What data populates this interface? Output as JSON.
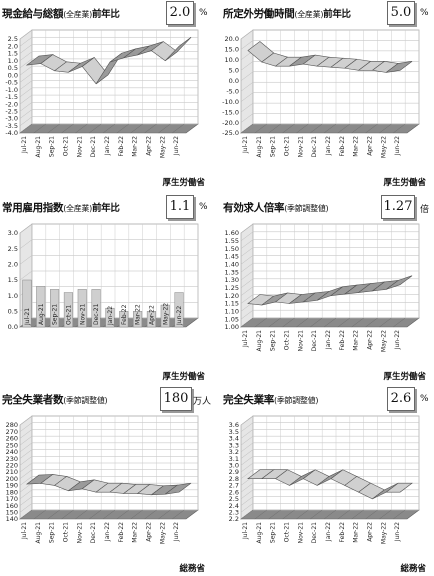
{
  "panels": [
    {
      "title": "現金給与総額",
      "sub": "(全産業)",
      "tail": "前年比",
      "value": "2.0",
      "unit": "%",
      "source": "厚生労働省"
    },
    {
      "title": "所定外労働時間",
      "sub": "(全産業)",
      "tail": "前年比",
      "value": "5.0",
      "unit": "%",
      "source": "厚生労働省"
    },
    {
      "title": "常用雇用指数",
      "sub": "(全産業)",
      "tail": "前年比",
      "value": "1.1",
      "unit": "%",
      "source": "厚生労働省"
    },
    {
      "title": "有効求人倍率",
      "sub": "(季節調整値)",
      "tail": "",
      "value": "1.27",
      "unit": "倍",
      "source": "厚生労働省"
    },
    {
      "title": "完全失業者数",
      "sub": "(季節調整値)",
      "tail": "",
      "value": "180",
      "unit": "万人",
      "source": "総務省"
    },
    {
      "title": "完全失業率",
      "sub": "(季節調整値)",
      "tail": "",
      "value": "2.6",
      "unit": "%",
      "source": "総務省"
    }
  ],
  "chart_data": [
    {
      "type": "line",
      "ylim": [
        -4.0,
        2.5
      ],
      "step": 0.5,
      "decimals": 1,
      "categories": [
        "Jul-21",
        "Aug-21",
        "Sep-21",
        "Oct-21",
        "Nov-21",
        "Dec-21",
        "Jan-22",
        "Feb-22",
        "Mar-22",
        "Apr-22",
        "May-22",
        "Jun-22"
      ],
      "values": [
        0.7,
        0.8,
        0.3,
        0.2,
        0.6,
        -0.6,
        0.9,
        1.2,
        1.4,
        1.7,
        1.0,
        2.0
      ]
    },
    {
      "type": "line",
      "ylim": [
        -25.0,
        20.0
      ],
      "step": 5,
      "decimals": 1,
      "categories": [
        "Jul-21",
        "Aug-21",
        "Sep-21",
        "Oct-21",
        "Nov-21",
        "Dec-21",
        "Jan-22",
        "Feb-22",
        "Mar-22",
        "Apr-22",
        "May-22",
        "Jun-22"
      ],
      "values": [
        14.5,
        9.0,
        7.0,
        7.0,
        8.0,
        7.0,
        6.5,
        6.0,
        5.0,
        5.0,
        4.0,
        5.0
      ]
    },
    {
      "type": "bar",
      "ylim": [
        0,
        3.0
      ],
      "step": 0.5,
      "decimals": 1,
      "categories": [
        "Jul-21",
        "Aug-21",
        "Sep-21",
        "Oct-21",
        "Nov-21",
        "Dec-21",
        "Jan-22",
        "Feb-22",
        "Mar-22",
        "Apr-22",
        "May-22",
        "Jun-22"
      ],
      "values": [
        1.5,
        1.3,
        1.2,
        1.1,
        1.2,
        1.2,
        0.6,
        0.5,
        0.5,
        0.5,
        0.7,
        1.1
      ]
    },
    {
      "type": "line",
      "ylim": [
        1.0,
        1.6
      ],
      "step": 0.05,
      "decimals": 2,
      "categories": [
        "Jul-21",
        "Aug-21",
        "Sep-21",
        "Oct-21",
        "Nov-21",
        "Dec-21",
        "Jan-22",
        "Feb-22",
        "Mar-22",
        "Apr-22",
        "May-22",
        "Jun-22"
      ],
      "values": [
        1.15,
        1.14,
        1.16,
        1.15,
        1.16,
        1.17,
        1.2,
        1.21,
        1.22,
        1.23,
        1.24,
        1.27
      ]
    },
    {
      "type": "line",
      "ylim": [
        140,
        280
      ],
      "step": 10,
      "decimals": 0,
      "categories": [
        "Jul-21",
        "Aug-21",
        "Sep-21",
        "Oct-21",
        "Nov-21",
        "Dec-21",
        "Jan-22",
        "Feb-22",
        "Mar-22",
        "Apr-22",
        "May-22",
        "Jun-22"
      ],
      "values": [
        192,
        193,
        190,
        182,
        185,
        180,
        180,
        178,
        178,
        176,
        177,
        180
      ]
    },
    {
      "type": "line",
      "ylim": [
        2.2,
        3.6
      ],
      "step": 0.1,
      "decimals": 1,
      "categories": [
        "Jul-21",
        "Aug-21",
        "Sep-21",
        "Oct-21",
        "Nov-21",
        "Dec-21",
        "Jan-22",
        "Feb-22",
        "Mar-22",
        "Apr-22",
        "May-22",
        "Jun-22"
      ],
      "values": [
        2.8,
        2.8,
        2.8,
        2.7,
        2.8,
        2.7,
        2.8,
        2.7,
        2.6,
        2.5,
        2.6,
        2.6
      ]
    }
  ]
}
